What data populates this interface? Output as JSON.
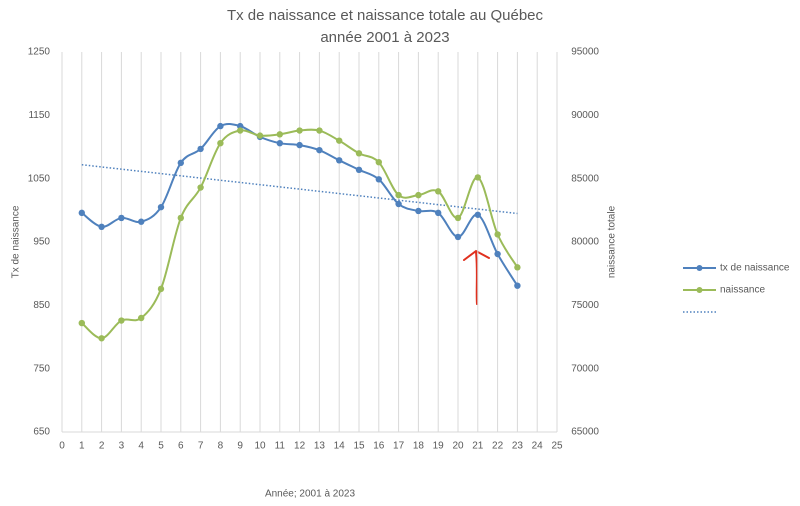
{
  "chart_data": {
    "type": "line",
    "title": [
      "Tx de naissance et naissance totale au Québec",
      "année 2001 à 2023"
    ],
    "x_label": "Année; 2001 à 2023",
    "y_label": "Tx de naissance",
    "y2_label": "naissance totale",
    "x": [
      1,
      2,
      3,
      4,
      5,
      6,
      7,
      8,
      9,
      10,
      11,
      12,
      13,
      14,
      15,
      16,
      17,
      18,
      19,
      20,
      21,
      22,
      23
    ],
    "series": [
      {
        "name": "tx de naissance",
        "color": "#4f81bd",
        "values": [
          996,
          974,
          988,
          982,
          1005,
          1075,
          1097,
          1133,
          1133,
          1116,
          1106,
          1103,
          1095,
          1079,
          1064,
          1049,
          1010,
          999,
          996,
          958,
          993,
          931,
          881
        ]
      },
      {
        "name": "naissance",
        "color": "#9bbb59",
        "axis": "y2",
        "values": [
          73600,
          72400,
          73800,
          74000,
          76300,
          81900,
          84300,
          87800,
          88800,
          88400,
          88500,
          88800,
          88800,
          88000,
          87000,
          86300,
          83700,
          83700,
          84000,
          81900,
          85100,
          80600,
          78000
        ]
      }
    ],
    "trendline": {
      "color": "#4f81bd",
      "x": [
        1,
        23
      ],
      "values": [
        1072,
        995
      ]
    },
    "xlim": [
      0,
      25
    ],
    "xticks": [
      0,
      1,
      2,
      3,
      4,
      5,
      6,
      7,
      8,
      9,
      10,
      11,
      12,
      13,
      14,
      15,
      16,
      17,
      18,
      19,
      20,
      21,
      22,
      23,
      24,
      25
    ],
    "ylim": [
      650,
      1250
    ],
    "yticks": [
      650,
      750,
      850,
      950,
      1050,
      1150,
      1250
    ],
    "y2lim": [
      65000,
      95000
    ],
    "y2ticks": [
      65000,
      70000,
      75000,
      80000,
      85000,
      90000,
      95000
    ],
    "grid": "x",
    "smooth": true
  }
}
